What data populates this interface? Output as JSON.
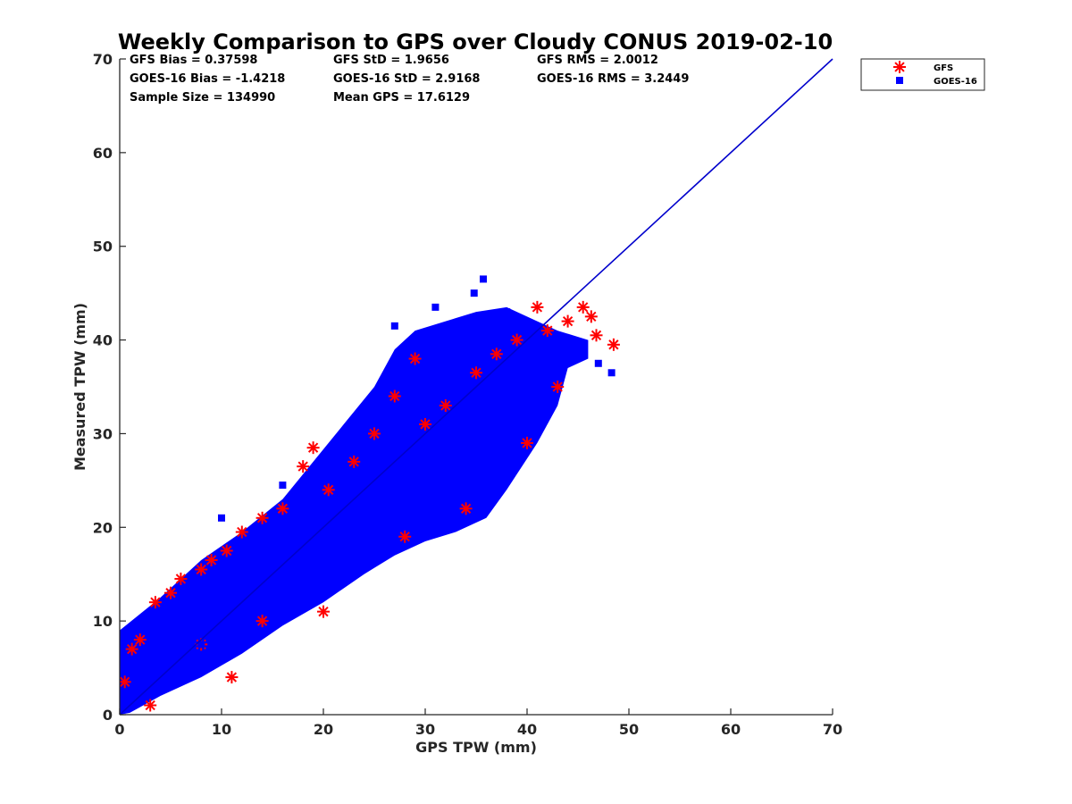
{
  "chart_data": {
    "type": "scatter",
    "title": "Weekly Comparison to GPS over Cloudy CONUS 2019-02-10",
    "xlabel": "GPS TPW (mm)",
    "ylabel": "Measured TPW (mm)",
    "xlim": [
      0,
      70
    ],
    "ylim": [
      0,
      70
    ],
    "xticks": [
      "0",
      "10",
      "20",
      "30",
      "40",
      "50",
      "60",
      "70"
    ],
    "yticks": [
      "0",
      "10",
      "20",
      "30",
      "40",
      "50",
      "60",
      "70"
    ],
    "grid": false,
    "legend_position": "outside-top-right",
    "stats": {
      "gfs_bias": "GFS Bias = 0.37598",
      "gfs_std": "GFS StD = 1.9656",
      "gfs_rms": "GFS RMS = 2.0012",
      "goes_bias": "GOES-16 Bias = -1.4218",
      "goes_std": "GOES-16 StD = 2.9168",
      "goes_rms": "GOES-16 RMS = 3.2449",
      "sample_size": "Sample Size = 134990",
      "mean_gps": "Mean GPS = 17.6129"
    },
    "one_to_one_line": {
      "x": [
        0,
        70
      ],
      "y": [
        0,
        70
      ],
      "color": "#0000cc"
    },
    "series": [
      {
        "name": "GFS",
        "marker": "asterisk",
        "color": "#ff0000",
        "x": [
          0.5,
          1.2,
          2.0,
          3.5,
          5.0,
          6.0,
          8.0,
          9.0,
          10.5,
          12.0,
          14.0,
          16.0,
          18.0,
          19.0,
          20.5,
          23.0,
          25.0,
          27.0,
          29.0,
          30.0,
          32.0,
          35.0,
          37.0,
          39.0,
          41.0,
          42.0,
          44.0,
          45.5,
          46.3,
          46.8,
          48.5,
          8.0,
          14.0,
          20.0,
          28.0,
          34.0,
          40.0,
          43.0,
          3.0,
          11.0
        ],
        "y": [
          3.5,
          7.0,
          8.0,
          12.0,
          13.0,
          14.5,
          15.5,
          16.5,
          17.5,
          19.5,
          21.0,
          22.0,
          26.5,
          28.5,
          24.0,
          27.0,
          30.0,
          34.0,
          38.0,
          31.0,
          33.0,
          36.5,
          38.5,
          40.0,
          43.5,
          41.0,
          42.0,
          43.5,
          42.5,
          40.5,
          39.5,
          7.5,
          10.0,
          11.0,
          19.0,
          22.0,
          29.0,
          35.0,
          1.0,
          4.0
        ]
      },
      {
        "name": "GOES-16",
        "marker": "square",
        "color": "#0000ff",
        "x": [
          2.0,
          4.0,
          6.0,
          8.0,
          10.0,
          12.0,
          14.0,
          16.0,
          18.0,
          20.0,
          22.0,
          24.0,
          26.0,
          28.0,
          30.0,
          32.0,
          34.0,
          36.0,
          38.0,
          40.0,
          42.0,
          35.7,
          34.8,
          38.0,
          44.0,
          47.0,
          48.3,
          16.0,
          10.0,
          27.0,
          31.0
        ],
        "y": [
          2.5,
          4.0,
          6.0,
          7.5,
          9.5,
          11.0,
          13.0,
          15.0,
          17.0,
          19.0,
          21.0,
          23.0,
          25.5,
          27.5,
          29.0,
          31.0,
          33.0,
          34.5,
          36.0,
          37.0,
          39.0,
          46.5,
          45.0,
          43.0,
          39.0,
          37.5,
          36.5,
          24.5,
          21.0,
          41.5,
          43.5
        ]
      }
    ]
  }
}
